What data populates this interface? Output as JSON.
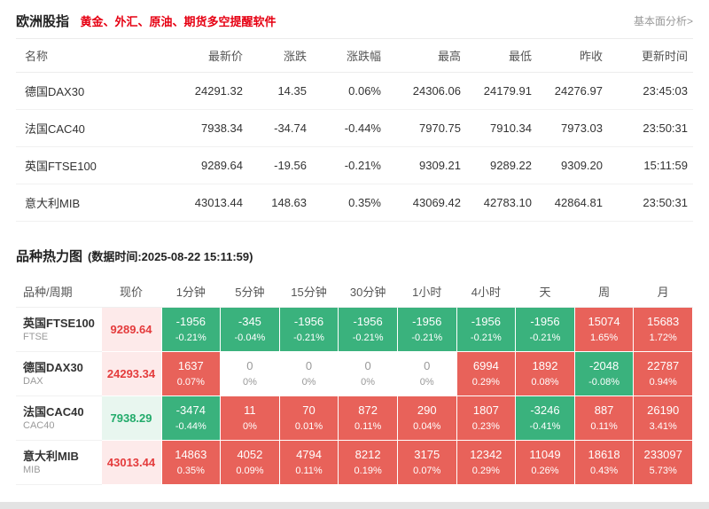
{
  "page": {
    "title": "欧洲股指",
    "subtitle": "黄金、外汇、原油、期货多空提醒软件",
    "link": "基本面分析>"
  },
  "colors": {
    "up_text": "#e43b3c",
    "down_text": "#22ab6b",
    "heat_up_bg": "#e8625a",
    "heat_down_bg": "#3ab27d",
    "promo_red": "#e60012"
  },
  "quote_table": {
    "headers": [
      "名称",
      "最新价",
      "涨跌",
      "涨跌幅",
      "最高",
      "最低",
      "昨收",
      "更新时间"
    ],
    "rows": [
      {
        "name": "德国DAX30",
        "last": "24291.32",
        "change": "14.35",
        "change_pct": "0.06%",
        "high": "24306.06",
        "low": "24179.91",
        "prev_close": "24276.97",
        "time": "23:45:03",
        "dir": "up"
      },
      {
        "name": "法国CAC40",
        "last": "7938.34",
        "change": "-34.74",
        "change_pct": "-0.44%",
        "high": "7970.75",
        "low": "7910.34",
        "prev_close": "7973.03",
        "time": "23:50:31",
        "dir": "down"
      },
      {
        "name": "英国FTSE100",
        "last": "9289.64",
        "change": "-19.56",
        "change_pct": "-0.21%",
        "high": "9309.21",
        "low": "9289.22",
        "prev_close": "9309.20",
        "time": "15:11:59",
        "dir": "down"
      },
      {
        "name": "意大利MIB",
        "last": "43013.44",
        "change": "148.63",
        "change_pct": "0.35%",
        "high": "43069.42",
        "low": "42783.10",
        "prev_close": "42864.81",
        "time": "23:50:31",
        "dir": "up"
      }
    ]
  },
  "heatmap": {
    "title": "品种热力图",
    "timestamp": "(数据时间:2025-08-22 15:11:59)",
    "headers": [
      "品种/周期",
      "现价",
      "1分钟",
      "5分钟",
      "15分钟",
      "30分钟",
      "1小时",
      "4小时",
      "天",
      "周",
      "月"
    ],
    "rows": [
      {
        "name": "英国FTSE100",
        "code": "FTSE",
        "price": "9289.64",
        "price_dir": "up",
        "cells": [
          {
            "v": "-1956",
            "p": "-0.21%",
            "c": "down"
          },
          {
            "v": "-345",
            "p": "-0.04%",
            "c": "down"
          },
          {
            "v": "-1956",
            "p": "-0.21%",
            "c": "down"
          },
          {
            "v": "-1956",
            "p": "-0.21%",
            "c": "down"
          },
          {
            "v": "-1956",
            "p": "-0.21%",
            "c": "down"
          },
          {
            "v": "-1956",
            "p": "-0.21%",
            "c": "down"
          },
          {
            "v": "-1956",
            "p": "-0.21%",
            "c": "down"
          },
          {
            "v": "15074",
            "p": "1.65%",
            "c": "up"
          },
          {
            "v": "15683",
            "p": "1.72%",
            "c": "up"
          }
        ]
      },
      {
        "name": "德国DAX30",
        "code": "DAX",
        "price": "24293.34",
        "price_dir": "up",
        "cells": [
          {
            "v": "1637",
            "p": "0.07%",
            "c": "up"
          },
          {
            "v": "0",
            "p": "0%",
            "c": "flat"
          },
          {
            "v": "0",
            "p": "0%",
            "c": "flat"
          },
          {
            "v": "0",
            "p": "0%",
            "c": "flat"
          },
          {
            "v": "0",
            "p": "0%",
            "c": "flat"
          },
          {
            "v": "6994",
            "p": "0.29%",
            "c": "up"
          },
          {
            "v": "1892",
            "p": "0.08%",
            "c": "up"
          },
          {
            "v": "-2048",
            "p": "-0.08%",
            "c": "down"
          },
          {
            "v": "22787",
            "p": "0.94%",
            "c": "up"
          }
        ]
      },
      {
        "name": "法国CAC40",
        "code": "CAC40",
        "price": "7938.29",
        "price_dir": "down",
        "cells": [
          {
            "v": "-3474",
            "p": "-0.44%",
            "c": "down"
          },
          {
            "v": "11",
            "p": "0%",
            "c": "up"
          },
          {
            "v": "70",
            "p": "0.01%",
            "c": "up"
          },
          {
            "v": "872",
            "p": "0.11%",
            "c": "up"
          },
          {
            "v": "290",
            "p": "0.04%",
            "c": "up"
          },
          {
            "v": "1807",
            "p": "0.23%",
            "c": "up"
          },
          {
            "v": "-3246",
            "p": "-0.41%",
            "c": "down"
          },
          {
            "v": "887",
            "p": "0.11%",
            "c": "up"
          },
          {
            "v": "26190",
            "p": "3.41%",
            "c": "up"
          }
        ]
      },
      {
        "name": "意大利MIB",
        "code": "MIB",
        "price": "43013.44",
        "price_dir": "up",
        "cells": [
          {
            "v": "14863",
            "p": "0.35%",
            "c": "up"
          },
          {
            "v": "4052",
            "p": "0.09%",
            "c": "up"
          },
          {
            "v": "4794",
            "p": "0.11%",
            "c": "up"
          },
          {
            "v": "8212",
            "p": "0.19%",
            "c": "up"
          },
          {
            "v": "3175",
            "p": "0.07%",
            "c": "up"
          },
          {
            "v": "12342",
            "p": "0.29%",
            "c": "up"
          },
          {
            "v": "11049",
            "p": "0.26%",
            "c": "up"
          },
          {
            "v": "18618",
            "p": "0.43%",
            "c": "up"
          },
          {
            "v": "233097",
            "p": "5.73%",
            "c": "up"
          }
        ]
      }
    ]
  }
}
